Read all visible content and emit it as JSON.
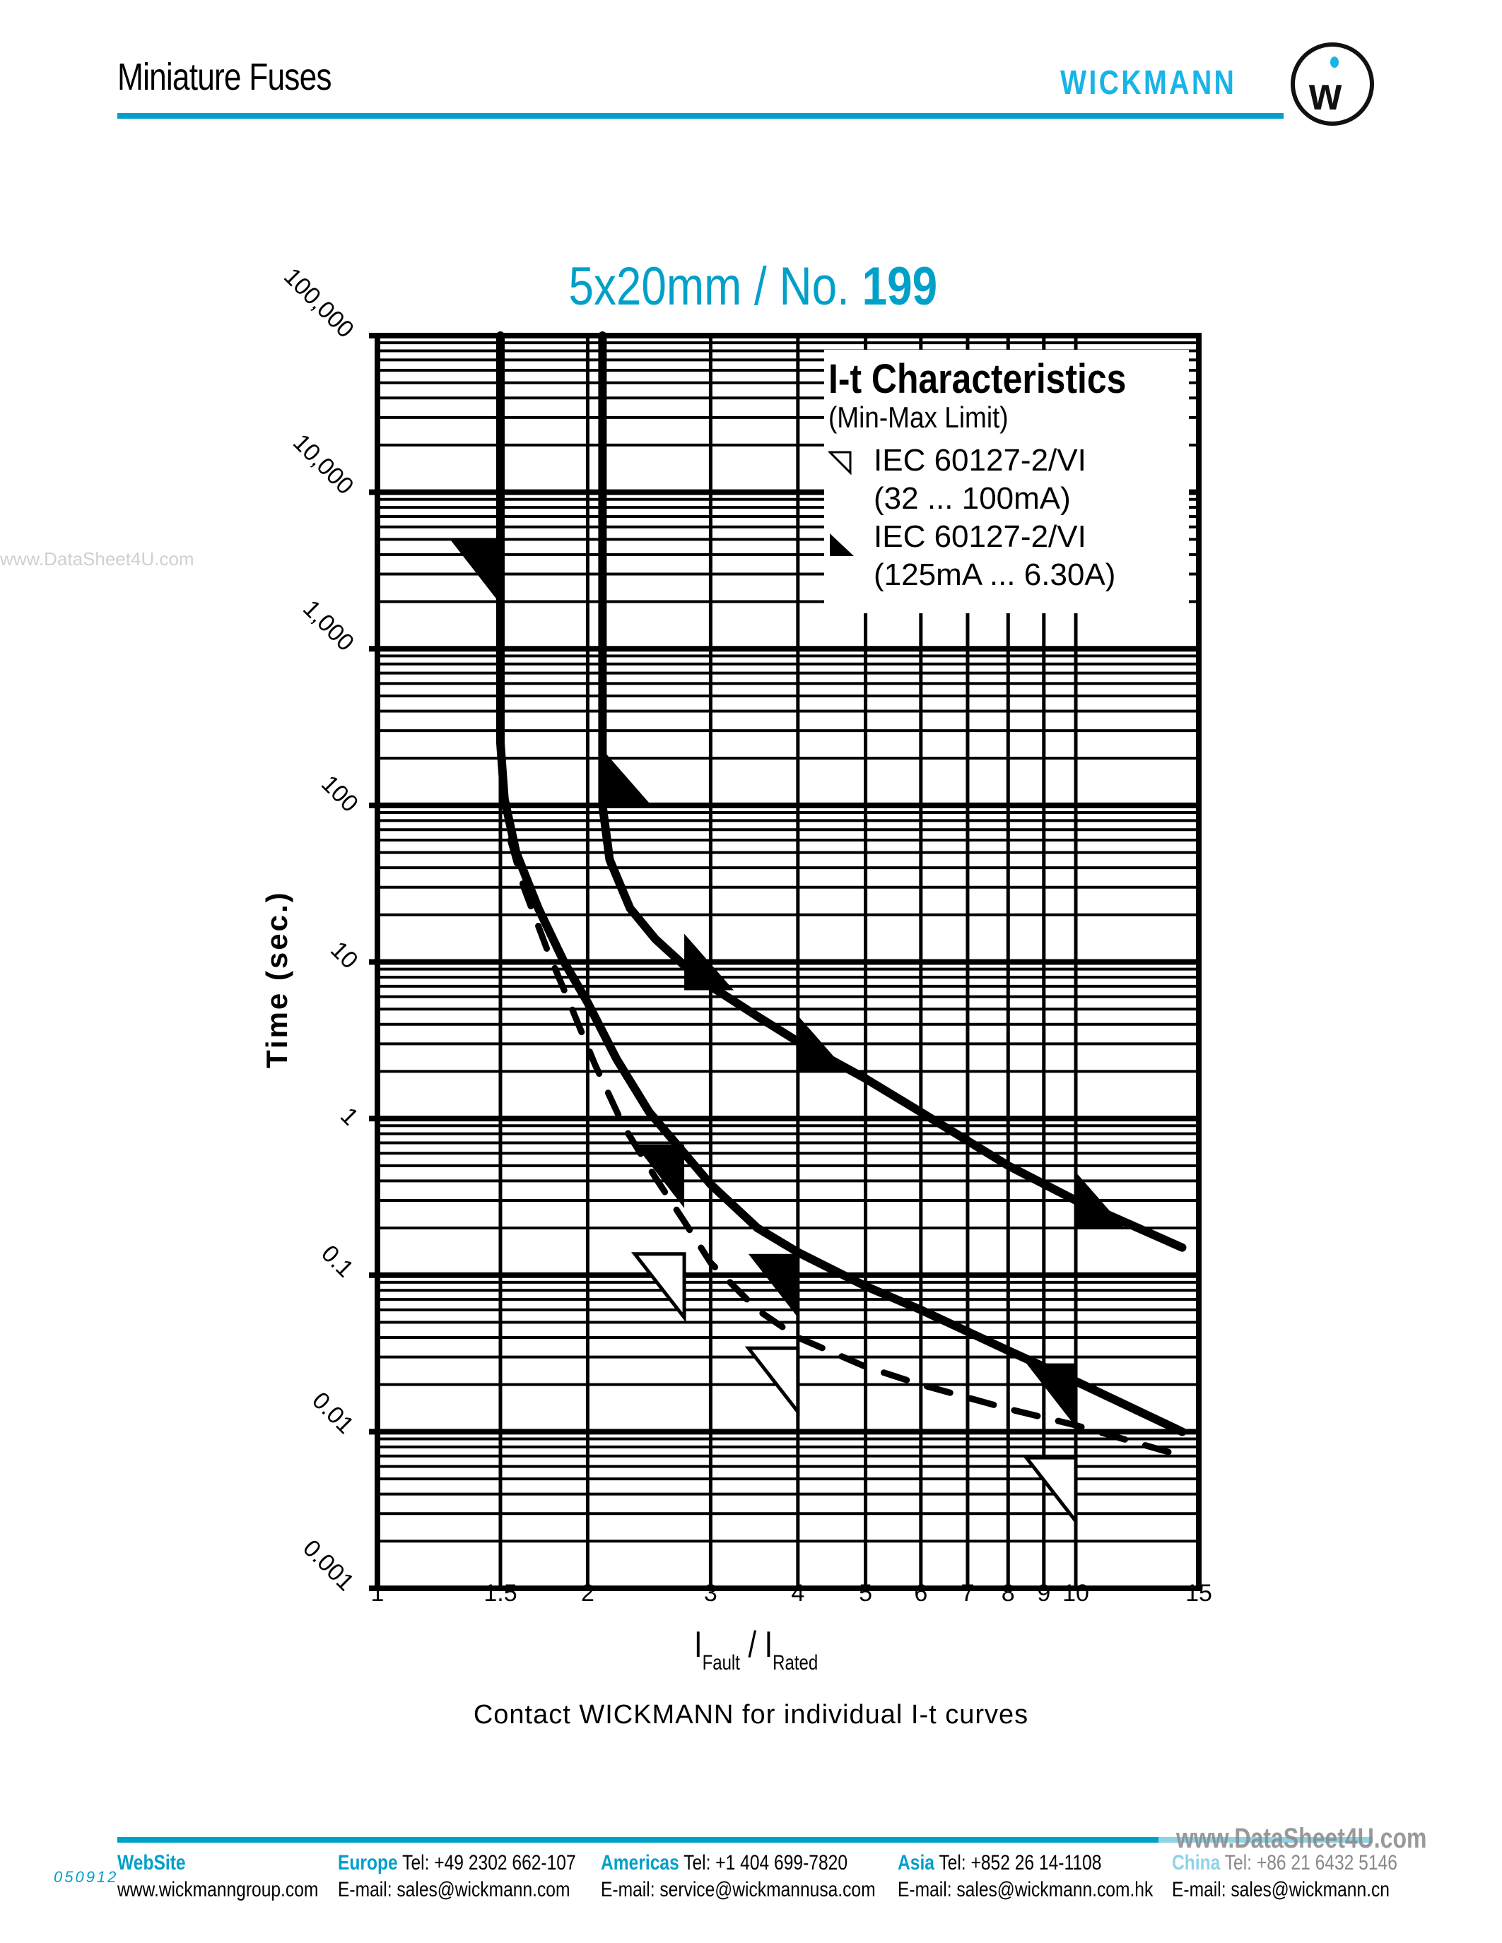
{
  "header": {
    "title": "Miniature Fuses",
    "brand": "WICKMANN",
    "logo_letter": "w",
    "accent_color": "#00a0c8",
    "brand_color": "#19b4e6"
  },
  "watermark": "www.DataSheet4U.com",
  "chart_data": {
    "type": "line",
    "title": "5x20mm / No. 199",
    "title_prefix": "5x20mm / No.",
    "title_number": "199",
    "xlabel": "I_Fault / I_Rated",
    "xlabel_main": "I",
    "xlabel_sub1": "Fault",
    "xlabel_sep": " / I",
    "xlabel_sub2": "Rated",
    "ylabel": "Time (sec.)",
    "xscale": "log",
    "yscale": "log",
    "xlim": [
      1,
      15
    ],
    "ylim": [
      0.001,
      100000
    ],
    "grid": true,
    "x_ticks": [
      1,
      1.5,
      2,
      3,
      4,
      5,
      6,
      7,
      8,
      9,
      10,
      15
    ],
    "x_tick_labels": [
      "1",
      "1.5",
      "2",
      "3",
      "4",
      "5",
      "6",
      "7",
      "8",
      "9",
      "10",
      "15"
    ],
    "y_ticks": [
      0.001,
      0.01,
      0.1,
      1,
      10,
      100,
      1000,
      10000,
      100000
    ],
    "y_tick_labels": [
      "0.001",
      "0.01",
      "0.1",
      "1",
      "10",
      "100",
      "1,000",
      "10,000",
      "100,000"
    ],
    "legend": {
      "title": "I-t Characteristics",
      "subtitle": "(Min-Max Limit)",
      "entries": [
        {
          "marker": "hollow-triangle",
          "label": "IEC 60127-2/VI",
          "range": "(32 ... 100mA)"
        },
        {
          "marker": "filled-triangle",
          "label": "IEC 60127-2/VI",
          "range": "(125mA ... 6.30A)"
        }
      ],
      "position": "upper right"
    },
    "series": [
      {
        "name": "Min limit (solid)",
        "style": "solid",
        "x": [
          1.5,
          1.5,
          1.52,
          1.58,
          1.7,
          1.85,
          2.0,
          2.2,
          2.45,
          2.75,
          3.0,
          3.5,
          4.0,
          5.0,
          6.0,
          8.0,
          10.0,
          14.2
        ],
        "y": [
          100000,
          250,
          110,
          50,
          22,
          10,
          5.5,
          2.4,
          1.1,
          0.6,
          0.38,
          0.2,
          0.14,
          0.085,
          0.06,
          0.033,
          0.021,
          0.01
        ]
      },
      {
        "name": "Max limit (solid)",
        "style": "solid",
        "x": [
          2.1,
          2.1,
          2.15,
          2.3,
          2.5,
          2.75,
          3.0,
          3.5,
          4.0,
          5.0,
          6.0,
          8.0,
          10.0,
          14.2
        ],
        "y": [
          100000,
          100,
          45,
          22,
          14,
          9.5,
          7.0,
          4.5,
          3.1,
          1.8,
          1.1,
          0.5,
          0.3,
          0.15
        ]
      },
      {
        "name": "Min limit 32...100mA (dashed)",
        "style": "dashed",
        "x": [
          1.55,
          1.62,
          1.75,
          1.9,
          2.05,
          2.25,
          2.5,
          2.75,
          3.0,
          3.5,
          4.0,
          5.0,
          6.0,
          8.0,
          10.0,
          14.2
        ],
        "y": [
          60,
          30,
          12,
          5.0,
          2.2,
          0.9,
          0.42,
          0.22,
          0.12,
          0.06,
          0.04,
          0.026,
          0.02,
          0.014,
          0.011,
          0.007
        ]
      }
    ],
    "markers": {
      "filled_max": [
        {
          "x": 2.1,
          "y": 150
        },
        {
          "x": 2.75,
          "y": 10
        },
        {
          "x": 4.0,
          "y": 3
        },
        {
          "x": 10.0,
          "y": 0.3
        }
      ],
      "filled_min": [
        {
          "x": 1.5,
          "y": 3600
        },
        {
          "x": 2.75,
          "y": 0.5
        },
        {
          "x": 4.0,
          "y": 0.1
        },
        {
          "x": 10.0,
          "y": 0.02
        }
      ],
      "hollow_min": [
        {
          "x": 2.75,
          "y": 0.1
        },
        {
          "x": 4.0,
          "y": 0.025
        },
        {
          "x": 10.0,
          "y": 0.005
        }
      ]
    }
  },
  "note": "Contact WICKMANN for individual I-t curves",
  "footer": {
    "code": "050912",
    "columns": [
      {
        "region": "WebSite",
        "tel": "",
        "line2": "www.wickmanngroup.com"
      },
      {
        "region": "Europe",
        "tel": "Tel: +49 2302 662-107",
        "line2": "E-mail: sales@wickmann.com"
      },
      {
        "region": "Americas",
        "tel": "Tel: +1 404 699-7820",
        "line2": "E-mail: service@wickmannusa.com"
      },
      {
        "region": "Asia",
        "tel": "Tel: +852 26 14-1108",
        "line2": "E-mail: sales@wickmann.com.hk"
      },
      {
        "region": "China",
        "tel": "Tel: +86 21 6432 5146",
        "line2": "E-mail: sales@wickmann.cn"
      }
    ]
  }
}
